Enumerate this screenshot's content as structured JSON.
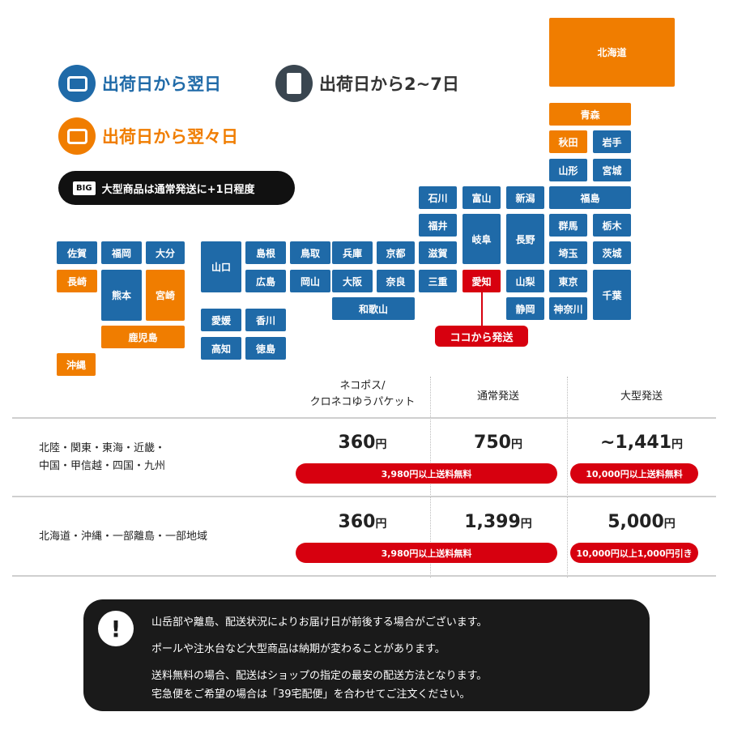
{
  "legend": {
    "next_day": {
      "label": "出荷日から翌日",
      "color": "#1f6aa8",
      "icon": "card-icon"
    },
    "day_after": {
      "label": "出荷日から翌々日",
      "color": "#f07d00",
      "icon": "card-icon"
    },
    "two_to_seven": {
      "label": "出荷日から2~7日",
      "color": "#3a4650",
      "icon": "envelope-icon"
    },
    "big": {
      "tag": "BIG",
      "label": "大型商品は通常発送に+1日程度"
    }
  },
  "map": {
    "prefectures": [
      {
        "name": "北海道",
        "cat": "after"
      },
      {
        "name": "青森",
        "cat": "after"
      },
      {
        "name": "秋田",
        "cat": "after"
      },
      {
        "name": "岩手",
        "cat": "next"
      },
      {
        "name": "山形",
        "cat": "next"
      },
      {
        "name": "宮城",
        "cat": "next"
      },
      {
        "name": "福島",
        "cat": "next"
      },
      {
        "name": "群馬",
        "cat": "next"
      },
      {
        "name": "栃木",
        "cat": "next"
      },
      {
        "name": "埼玉",
        "cat": "next"
      },
      {
        "name": "茨城",
        "cat": "next"
      },
      {
        "name": "東京",
        "cat": "next"
      },
      {
        "name": "神奈川",
        "cat": "next"
      },
      {
        "name": "千葉",
        "cat": "next"
      },
      {
        "name": "新潟",
        "cat": "next"
      },
      {
        "name": "長野",
        "cat": "next"
      },
      {
        "name": "山梨",
        "cat": "next"
      },
      {
        "name": "静岡",
        "cat": "next"
      },
      {
        "name": "富山",
        "cat": "next"
      },
      {
        "name": "岐阜",
        "cat": "next"
      },
      {
        "name": "愛知",
        "cat": "origin"
      },
      {
        "name": "石川",
        "cat": "next"
      },
      {
        "name": "福井",
        "cat": "next"
      },
      {
        "name": "滋賀",
        "cat": "next"
      },
      {
        "name": "三重",
        "cat": "next"
      },
      {
        "name": "兵庫",
        "cat": "next"
      },
      {
        "name": "京都",
        "cat": "next"
      },
      {
        "name": "大阪",
        "cat": "next"
      },
      {
        "name": "奈良",
        "cat": "next"
      },
      {
        "name": "和歌山",
        "cat": "next"
      },
      {
        "name": "島根",
        "cat": "next"
      },
      {
        "name": "鳥取",
        "cat": "next"
      },
      {
        "name": "広島",
        "cat": "next"
      },
      {
        "name": "岡山",
        "cat": "next"
      },
      {
        "name": "山口",
        "cat": "next"
      },
      {
        "name": "愛媛",
        "cat": "next"
      },
      {
        "name": "香川",
        "cat": "next"
      },
      {
        "name": "高知",
        "cat": "next"
      },
      {
        "name": "徳島",
        "cat": "next"
      },
      {
        "name": "佐賀",
        "cat": "next"
      },
      {
        "name": "福岡",
        "cat": "next"
      },
      {
        "name": "大分",
        "cat": "next"
      },
      {
        "name": "長崎",
        "cat": "after"
      },
      {
        "name": "熊本",
        "cat": "next"
      },
      {
        "name": "宮崎",
        "cat": "after"
      },
      {
        "name": "鹿児島",
        "cat": "after"
      },
      {
        "name": "沖縄",
        "cat": "after"
      }
    ],
    "origin_callout": "ココから発送"
  },
  "table": {
    "headers": [
      "ネコポス/\nクロネコゆうパケット",
      "通常発送",
      "大型発送"
    ],
    "rows": [
      {
        "label_1": "北陸・関東・東海・近畿・",
        "label_2": "中国・甲信越・四国・九州",
        "prices": [
          "360",
          "750",
          "~1,441"
        ],
        "free_note": "3,980円以上送料無料",
        "big_note": "10,000円以上送料無料"
      },
      {
        "label_1": "北海道・沖縄・一部離島・一部地域",
        "label_2": "",
        "prices": [
          "360",
          "1,399",
          "5,000"
        ],
        "free_note": "3,980円以上送料無料",
        "big_note": "10,000円以上1,000円引き"
      }
    ],
    "currency": "円"
  },
  "notice": {
    "lines": [
      "山岳部や離島、配送状況によりお届け日が前後する場合がございます。",
      "ポールや注水台など大型商品は納期が変わることがあります。",
      "送料無料の場合、配送はショップの指定の最安の配送方法となります。",
      "宅急便をご希望の場合は「39宅配便」を合わせてご注文ください。"
    ]
  }
}
